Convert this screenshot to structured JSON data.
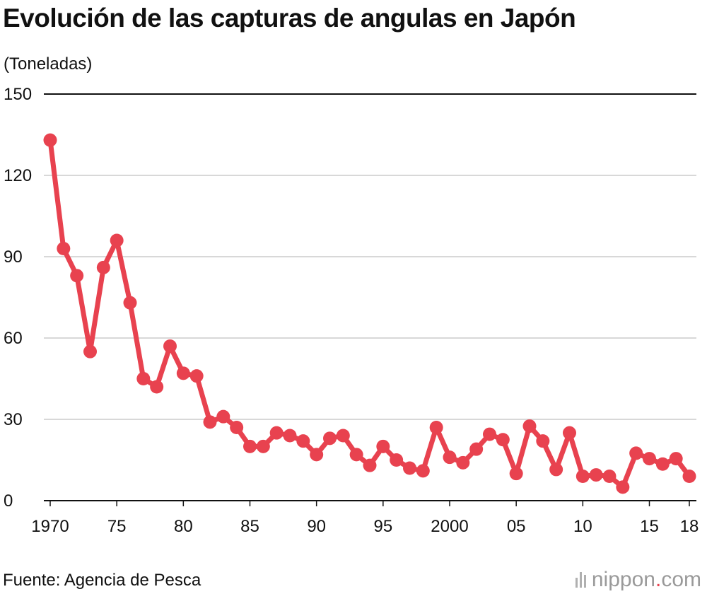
{
  "chart_data": {
    "type": "line",
    "title": "Evolución de las capturas de angulas en Japón",
    "ylabel": "(Toneladas)",
    "xlabel": "",
    "ylim": [
      0,
      150
    ],
    "yticks": [
      0,
      30,
      60,
      90,
      120,
      150
    ],
    "x": [
      1970,
      1971,
      1972,
      1973,
      1974,
      1975,
      1976,
      1977,
      1978,
      1979,
      1980,
      1981,
      1982,
      1983,
      1984,
      1985,
      1986,
      1987,
      1988,
      1989,
      1990,
      1991,
      1992,
      1993,
      1994,
      1995,
      1996,
      1997,
      1998,
      1999,
      2000,
      2001,
      2002,
      2003,
      2004,
      2005,
      2006,
      2007,
      2008,
      2009,
      2010,
      2011,
      2012,
      2013,
      2014,
      2015,
      2016,
      2017,
      2018
    ],
    "xticks": [
      {
        "year": 1970,
        "label": "1970"
      },
      {
        "year": 1975,
        "label": "75"
      },
      {
        "year": 1980,
        "label": "80"
      },
      {
        "year": 1985,
        "label": "85"
      },
      {
        "year": 1990,
        "label": "90"
      },
      {
        "year": 1995,
        "label": "95"
      },
      {
        "year": 2000,
        "label": "2000"
      },
      {
        "year": 2005,
        "label": "05"
      },
      {
        "year": 2010,
        "label": "10"
      },
      {
        "year": 2015,
        "label": "15"
      },
      {
        "year": 2018,
        "label": "18"
      }
    ],
    "series": [
      {
        "name": "Capturas de angulas",
        "color": "#e8424f",
        "values": [
          133,
          93,
          83,
          55,
          86,
          96,
          73,
          45,
          42,
          57,
          47,
          46,
          29,
          31,
          27,
          20,
          20,
          25,
          24,
          22,
          17,
          23,
          24,
          17,
          13,
          20,
          15,
          12,
          11,
          27,
          16,
          14,
          19,
          24.5,
          22.5,
          10,
          27.5,
          22,
          11.5,
          25,
          9,
          9.5,
          9,
          5,
          17.5,
          15.5,
          13.5,
          15.5,
          9
        ]
      }
    ],
    "grid": true,
    "legend": "none"
  },
  "source": "Fuente: Agencia de Pesca",
  "brand": {
    "name": "nippon",
    "dot": ".",
    "suffix": "com"
  }
}
